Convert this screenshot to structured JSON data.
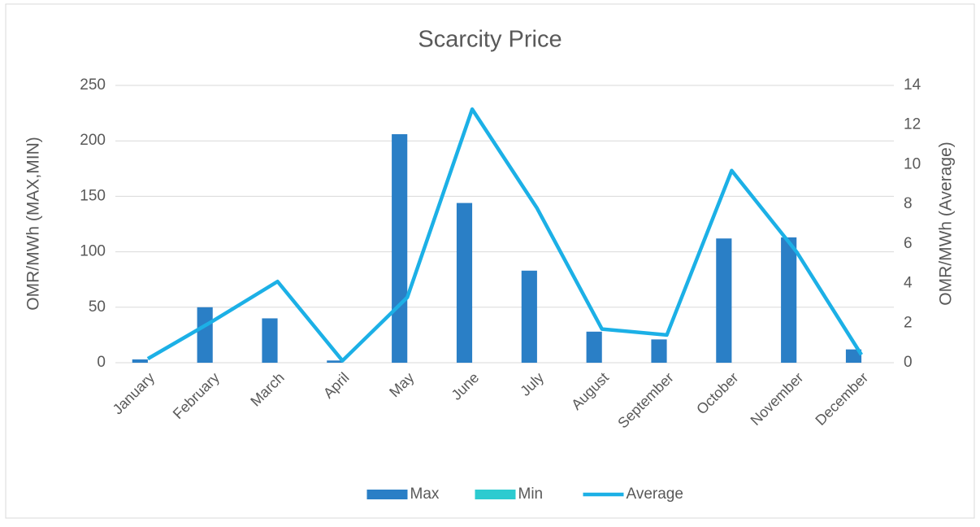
{
  "chart_data": {
    "type": "bar-line",
    "title": "Scarcity Price",
    "categories": [
      "January",
      "February",
      "March",
      "April",
      "May",
      "June",
      "July",
      "August",
      "September",
      "October",
      "November",
      "December"
    ],
    "series": [
      {
        "name": "Max",
        "color": "#2a7fc6",
        "type": "bar",
        "values": [
          3,
          50,
          40,
          2,
          206,
          144,
          83,
          28,
          21,
          112,
          113,
          12
        ]
      },
      {
        "name": "Min",
        "color": "#2ccbd0",
        "type": "bar",
        "values": [
          0,
          0,
          0,
          0,
          0,
          0,
          0,
          0,
          0,
          0,
          0,
          0
        ]
      },
      {
        "name": "Average",
        "color": "#1cb0e6",
        "type": "line",
        "axis": "y2",
        "values": [
          0.2,
          2.1,
          4.1,
          0.1,
          3.3,
          12.8,
          7.8,
          1.7,
          1.4,
          9.7,
          5.6,
          0.4
        ]
      }
    ],
    "ylabel": "OMR/MWh (MAX,MIN)",
    "y2label": "OMR/MWh (Average)",
    "ylim": [
      0,
      250
    ],
    "yticks": [
      0,
      50,
      100,
      150,
      200,
      250
    ],
    "y2lim": [
      0,
      14
    ],
    "y2ticks": [
      0,
      2,
      4,
      6,
      8,
      10,
      12,
      14
    ],
    "grid": true,
    "legend": "bottom"
  }
}
